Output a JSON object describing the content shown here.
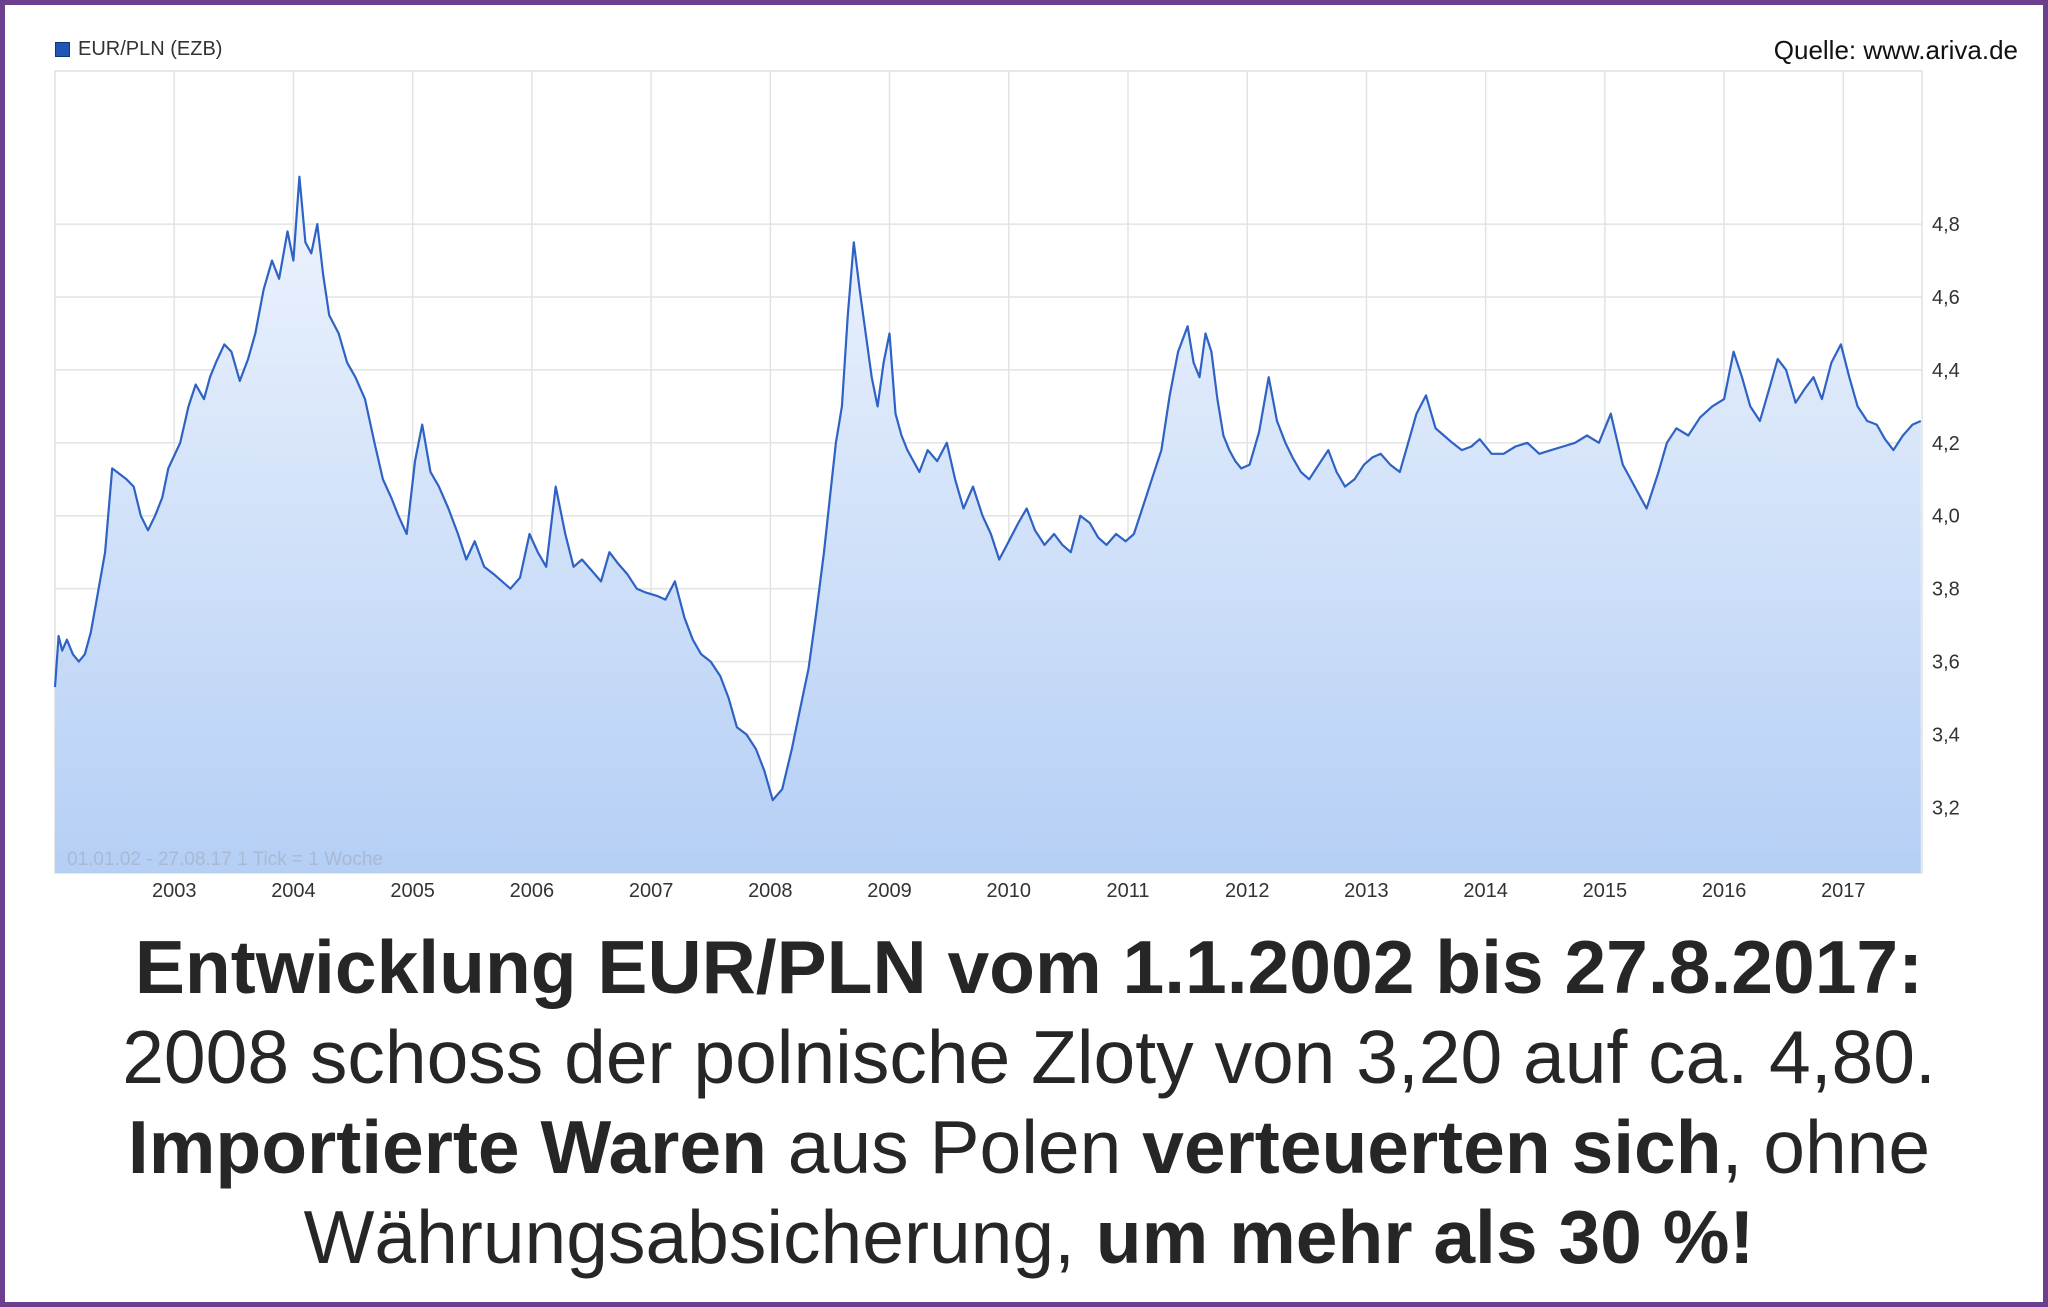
{
  "legend": {
    "label": "EUR/PLN (EZB)",
    "color": "#1f55b4"
  },
  "source": "Quelle: www.ariva.de",
  "chart_info": "01.01.02 - 27.08.17    1 Tick = 1 Woche",
  "caption": {
    "line1": "Entwicklung EUR/PLN vom 1.1.2002 bis 27.8.2017:",
    "line2": "2008 schoss der polnische Zloty von 3,20 auf ca. 4,80.",
    "line3_a": "Importierte Waren",
    "line3_b": " aus Polen ",
    "line3_c": "verteuerten sich",
    "line3_d": ", ohne",
    "line4_a": "Währungsabsicherung, ",
    "line4_b": "um mehr als 30 %!"
  },
  "chart_data": {
    "type": "area",
    "title": "",
    "series": [
      {
        "name": "EUR/PLN (EZB)",
        "x": [
          2002.0,
          2002.03,
          2002.06,
          2002.1,
          2002.15,
          2002.2,
          2002.25,
          2002.3,
          2002.35,
          2002.42,
          2002.48,
          2002.52,
          2002.6,
          2002.66,
          2002.72,
          2002.78,
          2002.84,
          2002.9,
          2002.95,
          2003.05,
          2003.12,
          2003.18,
          2003.25,
          2003.3,
          2003.35,
          2003.42,
          2003.48,
          2003.55,
          2003.62,
          2003.68,
          2003.75,
          2003.82,
          2003.88,
          2003.95,
          2004.0,
          2004.05,
          2004.1,
          2004.15,
          2004.2,
          2004.25,
          2004.3,
          2004.38,
          2004.45,
          2004.52,
          2004.6,
          2004.68,
          2004.75,
          2004.82,
          2004.88,
          2004.95,
          2005.02,
          2005.08,
          2005.15,
          2005.22,
          2005.3,
          2005.38,
          2005.45,
          2005.52,
          2005.6,
          2005.68,
          2005.75,
          2005.82,
          2005.9,
          2005.98,
          2006.05,
          2006.12,
          2006.2,
          2006.28,
          2006.35,
          2006.42,
          2006.5,
          2006.58,
          2006.65,
          2006.72,
          2006.8,
          2006.88,
          2006.95,
          2007.05,
          2007.12,
          2007.2,
          2007.28,
          2007.35,
          2007.42,
          2007.5,
          2007.58,
          2007.65,
          2007.72,
          2007.8,
          2007.88,
          2007.95,
          2008.02,
          2008.1,
          2008.18,
          2008.25,
          2008.32,
          2008.38,
          2008.45,
          2008.5,
          2008.55,
          2008.6,
          2008.65,
          2008.7,
          2008.75,
          2008.8,
          2008.85,
          2008.9,
          2008.95,
          2009.0,
          2009.05,
          2009.1,
          2009.15,
          2009.2,
          2009.25,
          2009.32,
          2009.4,
          2009.48,
          2009.55,
          2009.62,
          2009.7,
          2009.78,
          2009.85,
          2009.92,
          2010.0,
          2010.08,
          2010.15,
          2010.22,
          2010.3,
          2010.38,
          2010.45,
          2010.52,
          2010.6,
          2010.68,
          2010.75,
          2010.82,
          2010.9,
          2010.98,
          2011.05,
          2011.12,
          2011.2,
          2011.28,
          2011.35,
          2011.42,
          2011.5,
          2011.55,
          2011.6,
          2011.65,
          2011.7,
          2011.75,
          2011.8,
          2011.85,
          2011.9,
          2011.95,
          2012.02,
          2012.1,
          2012.18,
          2012.25,
          2012.32,
          2012.38,
          2012.45,
          2012.52,
          2012.6,
          2012.68,
          2012.75,
          2012.82,
          2012.9,
          2012.98,
          2013.05,
          2013.12,
          2013.2,
          2013.28,
          2013.35,
          2013.42,
          2013.5,
          2013.58,
          2013.65,
          2013.72,
          2013.8,
          2013.88,
          2013.95,
          2014.05,
          2014.15,
          2014.25,
          2014.35,
          2014.45,
          2014.55,
          2014.65,
          2014.75,
          2014.85,
          2014.95,
          2015.05,
          2015.15,
          2015.25,
          2015.35,
          2015.45,
          2015.52,
          2015.6,
          2015.7,
          2015.8,
          2015.9,
          2016.0,
          2016.08,
          2016.15,
          2016.22,
          2016.3,
          2016.38,
          2016.45,
          2016.52,
          2016.6,
          2016.68,
          2016.75,
          2016.82,
          2016.9,
          2016.98,
          2017.05,
          2017.12,
          2017.2,
          2017.28,
          2017.35,
          2017.42,
          2017.5,
          2017.58,
          2017.65
        ],
        "values": [
          3.53,
          3.67,
          3.63,
          3.66,
          3.62,
          3.6,
          3.62,
          3.68,
          3.77,
          3.9,
          4.13,
          4.12,
          4.1,
          4.08,
          4.0,
          3.96,
          4.0,
          4.05,
          4.13,
          4.2,
          4.3,
          4.36,
          4.32,
          4.38,
          4.42,
          4.47,
          4.45,
          4.37,
          4.43,
          4.5,
          4.62,
          4.7,
          4.65,
          4.78,
          4.7,
          4.93,
          4.75,
          4.72,
          4.8,
          4.66,
          4.55,
          4.5,
          4.42,
          4.38,
          4.32,
          4.2,
          4.1,
          4.05,
          4.0,
          3.95,
          4.15,
          4.25,
          4.12,
          4.08,
          4.02,
          3.95,
          3.88,
          3.93,
          3.86,
          3.84,
          3.82,
          3.8,
          3.83,
          3.95,
          3.9,
          3.86,
          4.08,
          3.95,
          3.86,
          3.88,
          3.85,
          3.82,
          3.9,
          3.87,
          3.84,
          3.8,
          3.79,
          3.78,
          3.77,
          3.82,
          3.72,
          3.66,
          3.62,
          3.6,
          3.56,
          3.5,
          3.42,
          3.4,
          3.36,
          3.3,
          3.22,
          3.25,
          3.36,
          3.47,
          3.58,
          3.72,
          3.9,
          4.05,
          4.2,
          4.3,
          4.55,
          4.75,
          4.62,
          4.5,
          4.38,
          4.3,
          4.42,
          4.5,
          4.28,
          4.22,
          4.18,
          4.15,
          4.12,
          4.18,
          4.15,
          4.2,
          4.1,
          4.02,
          4.08,
          4.0,
          3.95,
          3.88,
          3.93,
          3.98,
          4.02,
          3.96,
          3.92,
          3.95,
          3.92,
          3.9,
          4.0,
          3.98,
          3.94,
          3.92,
          3.95,
          3.93,
          3.95,
          4.02,
          4.1,
          4.18,
          4.33,
          4.45,
          4.52,
          4.42,
          4.38,
          4.5,
          4.45,
          4.32,
          4.22,
          4.18,
          4.15,
          4.13,
          4.14,
          4.23,
          4.38,
          4.26,
          4.2,
          4.16,
          4.12,
          4.1,
          4.14,
          4.18,
          4.12,
          4.08,
          4.1,
          4.14,
          4.16,
          4.17,
          4.14,
          4.12,
          4.2,
          4.28,
          4.33,
          4.24,
          4.22,
          4.2,
          4.18,
          4.19,
          4.21,
          4.17,
          4.17,
          4.19,
          4.2,
          4.17,
          4.18,
          4.19,
          4.2,
          4.22,
          4.2,
          4.28,
          4.14,
          4.08,
          4.02,
          4.12,
          4.2,
          4.24,
          4.22,
          4.27,
          4.3,
          4.32,
          4.45,
          4.38,
          4.3,
          4.26,
          4.35,
          4.43,
          4.4,
          4.31,
          4.35,
          4.38,
          4.32,
          4.42,
          4.47,
          4.38,
          4.3,
          4.26,
          4.25,
          4.21,
          4.18,
          4.22,
          4.25,
          4.26
        ]
      }
    ],
    "xlim": [
      2002.0,
      2017.66
    ],
    "ylim": [
      3.02,
      5.22
    ],
    "xticks": [
      2003,
      2004,
      2005,
      2006,
      2007,
      2008,
      2009,
      2010,
      2011,
      2012,
      2013,
      2014,
      2015,
      2016,
      2017
    ],
    "xtick_labels": [
      "2003",
      "2004",
      "2005",
      "2006",
      "2007",
      "2008",
      "2009",
      "2010",
      "2011",
      "2012",
      "2013",
      "2014",
      "2015",
      "2016",
      "2017"
    ],
    "yticks": [
      3.2,
      3.4,
      3.6,
      3.8,
      4.0,
      4.2,
      4.4,
      4.6,
      4.8
    ],
    "ytick_labels": [
      "3,2",
      "3,4",
      "3,6",
      "3,8",
      "4,0",
      "4,2",
      "4,4",
      "4,6",
      "4,8"
    ],
    "grid": true,
    "line_color": "#2e62c4",
    "fill_top": "#eef4fd",
    "fill_bottom": "#b5cff5"
  }
}
